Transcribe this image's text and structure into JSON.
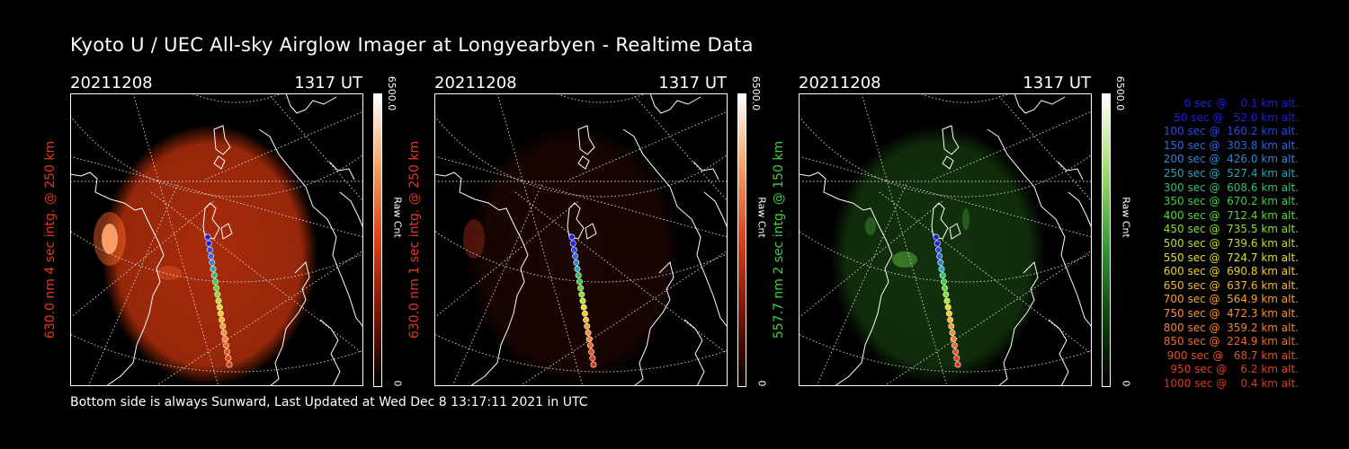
{
  "title": "Kyoto U / UEC All-sky Airglow Imager at Longyearbyen - Realtime Data",
  "footer": "Bottom side is always Sunward, Last Updated at Wed Dec  8 13:17:11 2021 in UTC",
  "panels": [
    {
      "date": "20211208",
      "time": "1317 UT",
      "ylabel": "630.0 nm 4 sec intg. @ 250 km",
      "ylabel_color": "#e03a1e",
      "cbar_max": "6500.0",
      "cbar_min": "0",
      "cbar_label": "Raw Cnt",
      "cbar_colors": [
        "#000000",
        "#7a1405",
        "#d84018",
        "#f5a060",
        "#ffffff"
      ],
      "glow_color": "#b12e0c",
      "glow_intensity": 1.0
    },
    {
      "date": "20211208",
      "time": "1317 UT",
      "ylabel": "630.0 nm 1 sec intg. @ 250 km",
      "ylabel_color": "#e03a1e",
      "cbar_max": "6500.0",
      "cbar_min": "0",
      "cbar_label": "Raw Cnt",
      "cbar_colors": [
        "#000000",
        "#7a1405",
        "#d84018",
        "#f5a060",
        "#ffffff"
      ],
      "glow_color": "#3c0d05",
      "glow_intensity": 0.45
    },
    {
      "date": "20211208",
      "time": "1317 UT",
      "ylabel": "557.7 nm 2 sec intg. @ 150 km",
      "ylabel_color": "#3fd03f",
      "cbar_max": "6500.0",
      "cbar_min": "0",
      "cbar_label": "Raw Cnt",
      "cbar_colors": [
        "#000000",
        "#0d4a0d",
        "#3aa03a",
        "#a8e070",
        "#ffffff"
      ],
      "glow_color": "#1a4a12",
      "glow_intensity": 0.7
    }
  ],
  "chart_data": {
    "type": "scatter",
    "title": "Kyoto U / UEC All-sky Airglow Imager at Longyearbyen - Realtime Data",
    "series": [
      {
        "name": "trajectory",
        "x_sec": [
          0,
          50,
          100,
          150,
          200,
          250,
          300,
          350,
          400,
          450,
          500,
          550,
          600,
          650,
          700,
          750,
          800,
          850,
          900,
          950,
          1000
        ],
        "alt_km": [
          0.1,
          52.0,
          160.2,
          303.8,
          426.0,
          527.4,
          608.6,
          670.2,
          712.4,
          735.5,
          739.6,
          724.7,
          690.8,
          637.6,
          564.9,
          472.3,
          359.2,
          224.9,
          68.7,
          6.2,
          0.4
        ]
      }
    ]
  },
  "legend": [
    {
      "text": "0 sec @    0.1 km alt.",
      "color": "#1e1ee6"
    },
    {
      "text": "50 sec @   52.0 km alt.",
      "color": "#1e1ee6"
    },
    {
      "text": "100 sec @  160.2 km alt.",
      "color": "#2a46ee"
    },
    {
      "text": "150 sec @  303.8 km alt.",
      "color": "#2f66e6"
    },
    {
      "text": "200 sec @  426.0 km alt.",
      "color": "#2f86d6"
    },
    {
      "text": "250 sec @  527.4 km alt.",
      "color": "#2aa6b6"
    },
    {
      "text": "300 sec @  608.6 km alt.",
      "color": "#30c070"
    },
    {
      "text": "350 sec @  670.2 km alt.",
      "color": "#3ad040"
    },
    {
      "text": "400 sec @  712.4 km alt.",
      "color": "#5ad830"
    },
    {
      "text": "450 sec @  735.5 km alt.",
      "color": "#8ae030"
    },
    {
      "text": "500 sec @  739.6 km alt.",
      "color": "#b8e028"
    },
    {
      "text": "550 sec @  724.7 km alt.",
      "color": "#dde028"
    },
    {
      "text": "600 sec @  690.8 km alt.",
      "color": "#f0d020"
    },
    {
      "text": "650 sec @  637.6 km alt.",
      "color": "#f8b828"
    },
    {
      "text": "700 sec @  564.9 km alt.",
      "color": "#f8a030"
    },
    {
      "text": "750 sec @  472.3 km alt.",
      "color": "#f89030"
    },
    {
      "text": "800 sec @  359.2 km alt.",
      "color": "#f88030"
    },
    {
      "text": "850 sec @  224.9 km alt.",
      "color": "#f06828"
    },
    {
      "text": "900 sec @   68.7 km alt.",
      "color": "#e85020"
    },
    {
      "text": "950 sec @    6.2 km alt.",
      "color": "#e04018"
    },
    {
      "text": "1000 sec @    0.4 km alt.",
      "color": "#d83818"
    }
  ]
}
